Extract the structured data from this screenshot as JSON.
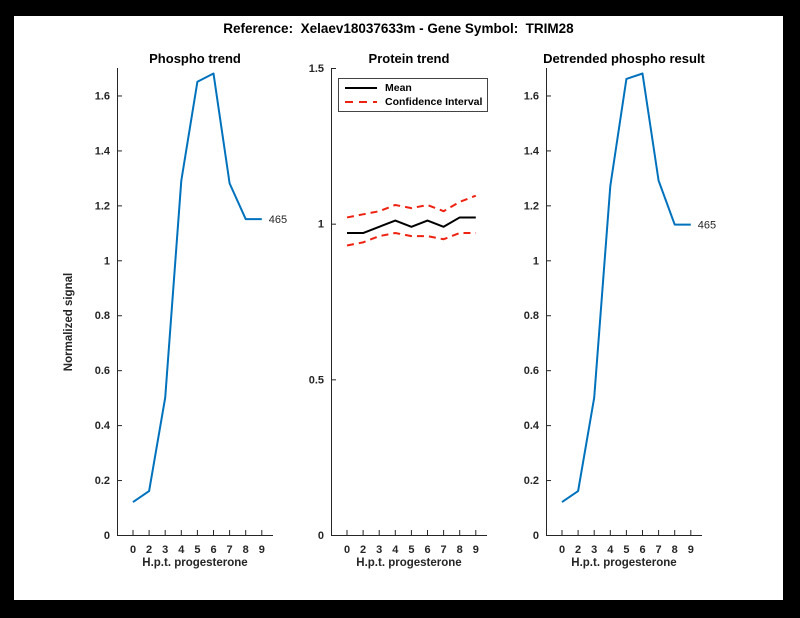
{
  "figure": {
    "title": "Reference:  Xelaev18037633m - Gene Symbol:  TRIM28",
    "background_color": "#000000",
    "canvas_color": "#ffffff"
  },
  "colors": {
    "line_blue": "#0072BD",
    "ci_red": "#ee2211",
    "mean_black": "#000000",
    "axis_gray": "#262626"
  },
  "legend": {
    "mean_label": "Mean",
    "ci_label": "Confidence Interval",
    "position": "northwest"
  },
  "chart_data": [
    {
      "type": "line",
      "title": "Phospho trend",
      "xlabel": "H.p.t. progesterone",
      "ylabel": "Normalized signal",
      "x_tick_labels": [
        "0",
        "2",
        "3",
        "4",
        "5",
        "6",
        "7",
        "8",
        "9"
      ],
      "y_tick_values": [
        0,
        0.2,
        0.4,
        0.6,
        0.8,
        1,
        1.2,
        1.4,
        1.6
      ],
      "y_tick_labels": [
        "0",
        "0.2",
        "0.4",
        "0.6",
        "0.8",
        "1",
        "1.2",
        "1.4",
        "1.6"
      ],
      "ylim": [
        0,
        1.7
      ],
      "grid": false,
      "series": [
        {
          "name": "phospho-signal",
          "color": "#0072BD",
          "style": "solid",
          "values": [
            0.12,
            0.16,
            0.5,
            1.29,
            1.65,
            1.68,
            1.28,
            1.15,
            1.15
          ]
        }
      ],
      "end_label": "465"
    },
    {
      "type": "line",
      "title": "Protein trend",
      "xlabel": "H.p.t. progesterone",
      "ylabel": "",
      "x_tick_labels": [
        "0",
        "2",
        "3",
        "4",
        "5",
        "6",
        "7",
        "8",
        "9"
      ],
      "y_tick_values": [
        0,
        0.5,
        1,
        1.5
      ],
      "y_tick_labels": [
        "0",
        "0.5",
        "1",
        "1.5"
      ],
      "ylim": [
        0,
        1.5
      ],
      "grid": false,
      "legend_entries": [
        "Mean",
        "Confidence Interval"
      ],
      "series": [
        {
          "name": "mean",
          "color": "#000000",
          "style": "solid",
          "values": [
            0.97,
            0.97,
            0.99,
            1.01,
            0.99,
            1.01,
            0.99,
            1.02,
            1.02
          ]
        },
        {
          "name": "ci-upper",
          "color": "#ee2211",
          "style": "dashed",
          "values": [
            1.02,
            1.03,
            1.04,
            1.06,
            1.05,
            1.06,
            1.04,
            1.07,
            1.09
          ]
        },
        {
          "name": "ci-lower",
          "color": "#ee2211",
          "style": "dashed",
          "values": [
            0.93,
            0.94,
            0.96,
            0.97,
            0.96,
            0.96,
            0.95,
            0.97,
            0.97
          ]
        }
      ]
    },
    {
      "type": "line",
      "title": "Detrended phospho result",
      "xlabel": "H.p.t. progesterone",
      "ylabel": "",
      "x_tick_labels": [
        "0",
        "2",
        "3",
        "4",
        "5",
        "6",
        "7",
        "8",
        "9"
      ],
      "y_tick_values": [
        0,
        0.2,
        0.4,
        0.6,
        0.8,
        1,
        1.2,
        1.4,
        1.6
      ],
      "y_tick_labels": [
        "0",
        "0.2",
        "0.4",
        "0.6",
        "0.8",
        "1",
        "1.2",
        "1.4",
        "1.6"
      ],
      "ylim": [
        0,
        1.7
      ],
      "grid": false,
      "series": [
        {
          "name": "detrended-phospho",
          "color": "#0072BD",
          "style": "solid",
          "values": [
            0.12,
            0.16,
            0.5,
            1.27,
            1.66,
            1.68,
            1.29,
            1.13,
            1.13
          ]
        }
      ],
      "end_label": "465"
    }
  ]
}
